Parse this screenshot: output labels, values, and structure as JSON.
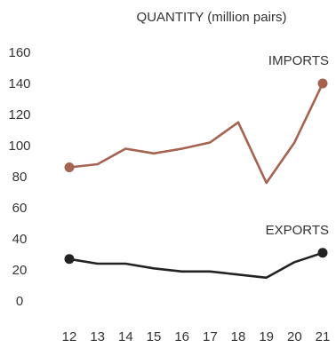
{
  "chart_data": {
    "type": "line",
    "title": "QUANTITY (million pairs)",
    "xlabel": "",
    "ylabel": "",
    "x": [
      "12",
      "13",
      "14",
      "15",
      "16",
      "17",
      "18",
      "19",
      "20",
      "21"
    ],
    "yticks": [
      0,
      20,
      40,
      60,
      80,
      100,
      120,
      140,
      160
    ],
    "ylim": [
      0,
      160
    ],
    "grid": false,
    "series": [
      {
        "name": "IMPORTS",
        "color": "#a5624f",
        "values": [
          86,
          88,
          98,
          95,
          98,
          102,
          115,
          76,
          102,
          140
        ],
        "markers": "endpoints"
      },
      {
        "name": "EXPORTS",
        "color": "#222222",
        "values": [
          27,
          24,
          24,
          21,
          19,
          19,
          17,
          15,
          25,
          31
        ],
        "markers": "endpoints"
      }
    ]
  }
}
